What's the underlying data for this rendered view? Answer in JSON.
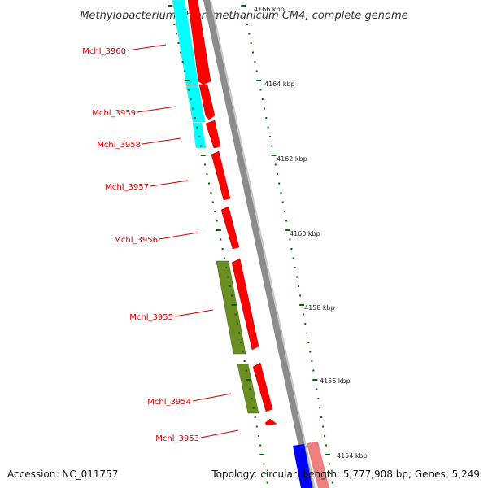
{
  "title": "Methylobacterium chloromethanicum CM4, complete genome",
  "footer": {
    "accession": "Accession: NC_011757",
    "summary": "Topology: circular; Length: 5,777,908 bp; Genes: 5,249"
  },
  "colors": {
    "forward_gene": "#ff0000",
    "cog_cyan": "#00ffff",
    "cog_olive": "#6b8e23",
    "cog_blue": "#0000ff",
    "cog_pink": "#f08080",
    "backbone": "#8c8c8c",
    "tick": "#006400",
    "gene_label": "#cc0000"
  },
  "genes": [
    {
      "name": "Mchl_3960"
    },
    {
      "name": "Mchl_3959"
    },
    {
      "name": "Mchl_3958"
    },
    {
      "name": "Mchl_3957"
    },
    {
      "name": "Mchl_3956"
    },
    {
      "name": "Mchl_3955"
    },
    {
      "name": "Mchl_3954"
    },
    {
      "name": "Mchl_3953"
    }
  ],
  "ruler": [
    {
      "label": "4166 kbp"
    },
    {
      "label": "4164 kbp"
    },
    {
      "label": "4162 kbp"
    },
    {
      "label": "4160 kbp"
    },
    {
      "label": "4158 kbp"
    },
    {
      "label": "4156 kbp"
    },
    {
      "label": "4154 kbp"
    }
  ]
}
